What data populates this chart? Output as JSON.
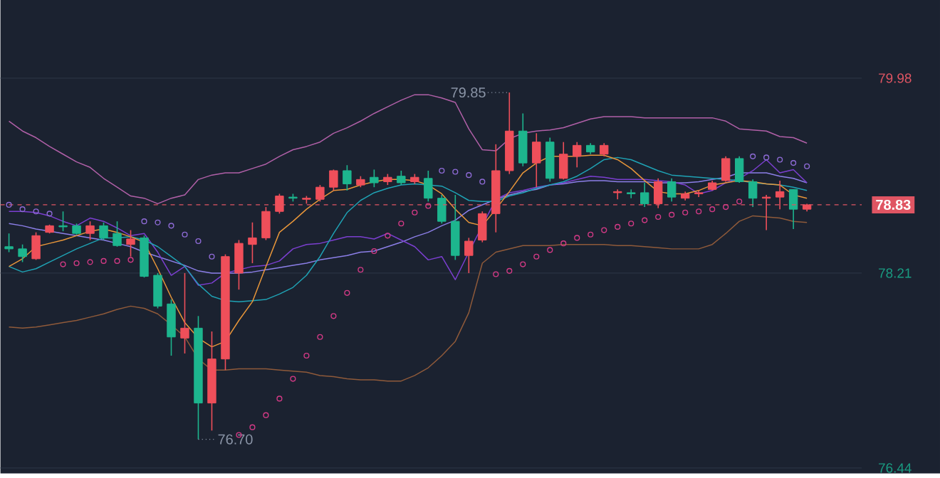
{
  "chart_data": {
    "type": "candlestick",
    "categories": [
      null,
      null,
      null,
      null,
      null,
      null,
      null,
      null,
      null,
      null,
      null,
      null,
      null,
      null,
      null,
      null,
      null,
      null,
      null,
      null,
      null,
      null,
      null,
      null,
      null,
      null,
      null,
      null,
      null,
      null,
      null,
      null,
      null,
      null,
      null,
      null,
      null,
      null,
      null,
      null,
      null,
      null,
      null,
      null,
      null,
      null,
      null,
      null,
      null,
      null,
      null,
      null,
      null,
      null,
      null,
      null,
      null,
      null,
      null,
      null
    ],
    "ohlc": [
      [
        78.45,
        78.57,
        78.4,
        78.43
      ],
      [
        78.43,
        78.47,
        78.31,
        78.36
      ],
      [
        78.34,
        78.58,
        78.33,
        78.55
      ],
      [
        78.58,
        78.65,
        78.57,
        78.64
      ],
      [
        78.64,
        78.77,
        78.59,
        78.63
      ],
      [
        78.64,
        78.66,
        78.56,
        78.57
      ],
      [
        78.57,
        78.68,
        78.51,
        78.64
      ],
      [
        78.64,
        78.67,
        78.51,
        78.53
      ],
      [
        78.57,
        78.68,
        78.45,
        78.46
      ],
      [
        78.47,
        78.6,
        78.36,
        78.52
      ],
      [
        78.53,
        78.55,
        78.17,
        78.18
      ],
      [
        78.19,
        78.21,
        77.89,
        77.91
      ],
      [
        77.93,
        77.97,
        77.46,
        77.63
      ],
      [
        77.62,
        78.21,
        77.48,
        77.71
      ],
      [
        77.71,
        77.82,
        76.7,
        77.03
      ],
      [
        77.03,
        77.68,
        76.78,
        77.43
      ],
      [
        77.43,
        78.38,
        77.33,
        78.36
      ],
      [
        78.21,
        78.51,
        78.06,
        78.48
      ],
      [
        78.47,
        78.67,
        78.3,
        78.53
      ],
      [
        78.53,
        78.81,
        78.51,
        78.77
      ],
      [
        78.77,
        78.93,
        78.75,
        78.91
      ],
      [
        78.9,
        78.93,
        78.86,
        78.89
      ],
      [
        78.88,
        78.91,
        78.84,
        78.89
      ],
      [
        78.88,
        79.01,
        78.86,
        78.99
      ],
      [
        78.99,
        79.15,
        78.96,
        79.14
      ],
      [
        79.14,
        79.19,
        78.96,
        79.02
      ],
      [
        79.01,
        79.09,
        78.99,
        79.06
      ],
      [
        79.08,
        79.15,
        78.99,
        79.03
      ],
      [
        79.04,
        79.11,
        79.01,
        79.08
      ],
      [
        79.09,
        79.14,
        79.01,
        79.03
      ],
      [
        79.04,
        79.11,
        79.02,
        79.08
      ],
      [
        79.07,
        79.14,
        78.86,
        78.89
      ],
      [
        78.89,
        78.92,
        78.66,
        78.68
      ],
      [
        78.68,
        78.92,
        78.33,
        78.37
      ],
      [
        78.37,
        78.53,
        78.21,
        78.5
      ],
      [
        78.51,
        78.77,
        78.49,
        78.75
      ],
      [
        78.75,
        79.38,
        78.58,
        79.14
      ],
      [
        79.14,
        79.85,
        79.11,
        79.5
      ],
      [
        79.5,
        79.66,
        79.18,
        79.21
      ],
      [
        79.21,
        79.48,
        78.99,
        79.4
      ],
      [
        79.4,
        79.44,
        79.04,
        79.07
      ],
      [
        79.07,
        79.4,
        79.06,
        79.29
      ],
      [
        79.27,
        79.4,
        79.17,
        79.37
      ],
      [
        79.37,
        79.39,
        79.29,
        79.31
      ],
      [
        79.29,
        79.39,
        79.27,
        79.37
      ],
      [
        78.94,
        78.97,
        78.88,
        78.95
      ],
      [
        78.94,
        78.97,
        78.89,
        78.93
      ],
      [
        78.94,
        79.03,
        78.81,
        78.84
      ],
      [
        78.84,
        79.07,
        78.8,
        79.04
      ],
      [
        79.04,
        79.07,
        78.86,
        78.9
      ],
      [
        78.89,
        78.95,
        78.87,
        78.93
      ],
      [
        78.93,
        78.96,
        78.9,
        78.94
      ],
      [
        78.97,
        79.05,
        78.96,
        79.03
      ],
      [
        79.05,
        79.27,
        79.04,
        79.25
      ],
      [
        79.25,
        79.27,
        79.03,
        79.04
      ],
      [
        79.04,
        79.06,
        78.81,
        78.89
      ],
      [
        78.89,
        78.92,
        78.6,
        78.9
      ],
      [
        78.9,
        79.05,
        78.79,
        78.95
      ],
      [
        78.97,
        78.97,
        78.61,
        78.79
      ],
      [
        78.79,
        78.84,
        78.77,
        78.83
      ]
    ],
    "colors": [
      "#1db58e",
      "#1db58e",
      "#ef4f5a",
      "#ef4f5a",
      "#1db58e",
      "#1db58e",
      "#ef4f5a",
      "#1db58e",
      "#1db58e",
      "#ef4f5a",
      "#1db58e",
      "#1db58e",
      "#1db58e",
      "#ef4f5a",
      "#1db58e",
      "#ef4f5a",
      "#ef4f5a",
      "#ef4f5a",
      "#ef4f5a",
      "#ef4f5a",
      "#ef4f5a",
      "#1db58e",
      "#ef4f5a",
      "#ef4f5a",
      "#ef4f5a",
      "#1db58e",
      "#ef4f5a",
      "#1db58e",
      "#ef4f5a",
      "#1db58e",
      "#ef4f5a",
      "#1db58e",
      "#1db58e",
      "#1db58e",
      "#ef4f5a",
      "#ef4f5a",
      "#ef4f5a",
      "#ef4f5a",
      "#1db58e",
      "#ef4f5a",
      "#1db58e",
      "#ef4f5a",
      "#ef4f5a",
      "#1db58e",
      "#ef4f5a",
      "#ef4f5a",
      "#1db58e",
      "#1db58e",
      "#ef4f5a",
      "#1db58e",
      "#ef4f5a",
      "#ef4f5a",
      "#ef4f5a",
      "#ef4f5a",
      "#1db58e",
      "#1db58e",
      "#ef4f5a",
      "#ef4f5a",
      "#1db58e",
      "#ef4f5a"
    ],
    "series": [
      {
        "type": "line",
        "color": "#b160a8",
        "values": [
          79.59,
          79.5,
          79.44,
          79.36,
          79.29,
          79.22,
          79.17,
          79.07,
          78.99,
          78.91,
          78.89,
          78.84,
          78.89,
          78.92,
          79.06,
          79.1,
          79.12,
          79.12,
          79.16,
          79.2,
          79.27,
          79.33,
          79.36,
          79.4,
          79.48,
          79.53,
          79.59,
          79.66,
          79.72,
          79.78,
          79.83,
          79.83,
          79.8,
          79.76,
          79.52,
          79.33,
          79.32,
          79.43,
          79.48,
          79.5,
          79.51,
          79.53,
          79.57,
          79.61,
          79.63,
          79.63,
          79.63,
          79.62,
          79.62,
          79.62,
          79.62,
          79.62,
          79.62,
          79.59,
          79.52,
          79.51,
          79.5,
          79.45,
          79.44,
          79.39
        ]
      },
      {
        "type": "line",
        "color": "#8f5a3a",
        "values": [
          77.72,
          77.71,
          77.72,
          77.74,
          77.76,
          77.78,
          77.81,
          77.84,
          77.88,
          77.91,
          77.89,
          77.84,
          77.74,
          77.63,
          77.43,
          77.33,
          77.33,
          77.34,
          77.34,
          77.34,
          77.33,
          77.32,
          77.31,
          77.28,
          77.27,
          77.25,
          77.24,
          77.24,
          77.23,
          77.23,
          77.28,
          77.35,
          77.46,
          77.59,
          77.85,
          78.3,
          78.4,
          78.43,
          78.46,
          78.46,
          78.46,
          78.47,
          78.47,
          78.47,
          78.47,
          78.46,
          78.46,
          78.45,
          78.44,
          78.43,
          78.43,
          78.43,
          78.47,
          78.57,
          78.68,
          78.73,
          78.72,
          78.71,
          78.68,
          78.67
        ]
      },
      {
        "type": "line",
        "color": "#8c7fe8",
        "values": [
          78.66,
          78.64,
          78.61,
          78.59,
          78.57,
          78.55,
          78.53,
          78.51,
          78.48,
          78.45,
          78.4,
          78.36,
          78.32,
          78.28,
          78.23,
          78.21,
          78.21,
          78.21,
          78.22,
          78.24,
          78.26,
          78.28,
          78.3,
          78.33,
          78.35,
          78.37,
          78.4,
          78.41,
          78.45,
          78.49,
          78.54,
          78.58,
          78.64,
          78.69,
          78.78,
          78.83,
          78.88,
          78.92,
          78.95,
          78.97,
          79.01,
          79.02,
          79.04,
          79.05,
          79.05,
          79.04,
          79.04,
          79.04,
          79.03,
          79.03,
          79.03,
          79.04,
          79.06,
          79.08,
          79.12,
          79.12,
          79.12,
          79.09,
          79.07,
          79.03
        ]
      },
      {
        "type": "line",
        "color": "#7b3fd0",
        "values": [
          78.77,
          78.77,
          78.76,
          78.73,
          78.68,
          78.64,
          78.71,
          78.68,
          78.62,
          78.55,
          78.57,
          78.4,
          78.19,
          78.27,
          78.1,
          78.12,
          78.21,
          78.24,
          78.27,
          78.28,
          78.32,
          78.43,
          78.47,
          78.48,
          78.51,
          78.54,
          78.54,
          78.52,
          78.57,
          78.51,
          78.45,
          78.33,
          78.36,
          78.15,
          78.4,
          null,
          78.88,
          78.94,
          78.96,
          78.99,
          79.01,
          79.03,
          79.06,
          79.09,
          79.08,
          79.06,
          79.06,
          79.06,
          79.05,
          79.04,
          79.01,
          78.93,
          78.96,
          79.03,
          79.07,
          79.14,
          79.24,
          79.12,
          79.15,
          79.03
        ]
      },
      {
        "type": "line",
        "color": "#1fa3b5",
        "values": [
          78.27,
          78.22,
          78.25,
          78.31,
          78.37,
          78.43,
          78.48,
          78.53,
          78.53,
          78.54,
          78.51,
          78.45,
          78.36,
          78.27,
          78.11,
          78.0,
          77.96,
          77.95,
          77.96,
          77.97,
          78.02,
          78.08,
          78.19,
          78.36,
          78.57,
          78.76,
          78.87,
          78.94,
          78.98,
          79.01,
          79.02,
          79.01,
          79.0,
          78.94,
          78.87,
          78.86,
          78.86,
          78.91,
          78.94,
          78.98,
          79.01,
          79.04,
          79.09,
          79.16,
          79.24,
          79.26,
          79.24,
          79.19,
          79.14,
          79.1,
          79.09,
          79.08,
          79.07,
          79.06,
          79.05,
          79.03,
          79.02,
          79.01,
          78.99,
          78.96
        ]
      },
      {
        "type": "line",
        "color": "#e8963a",
        "values": [
          78.27,
          78.34,
          78.45,
          78.48,
          78.51,
          78.55,
          78.59,
          78.61,
          78.58,
          78.54,
          78.49,
          78.25,
          77.99,
          77.76,
          77.62,
          77.54,
          77.59,
          77.78,
          77.95,
          78.27,
          78.58,
          78.68,
          78.79,
          78.88,
          78.96,
          78.97,
          79.01,
          79.04,
          79.06,
          79.06,
          79.05,
          79.01,
          78.93,
          78.79,
          78.67,
          78.64,
          78.79,
          78.95,
          79.12,
          79.21,
          79.27,
          79.27,
          79.27,
          79.28,
          79.28,
          79.24,
          79.16,
          79.05,
          78.95,
          78.93,
          78.93,
          78.96,
          79.01,
          79.03,
          79.05,
          79.04,
          79.02,
          79.01,
          78.92,
          78.89
        ]
      },
      {
        "type": "scatter",
        "marker": "circle",
        "color": "#8e6bd6",
        "values": [
          78.83,
          78.79,
          78.77,
          78.75,
          null,
          null,
          null,
          null,
          null,
          null,
          78.68,
          78.67,
          78.64,
          78.56,
          78.5,
          78.36,
          null,
          null,
          null,
          null,
          null,
          null,
          null,
          null,
          null,
          null,
          null,
          null,
          null,
          null,
          null,
          null,
          79.14,
          79.13,
          79.1,
          79.04,
          null,
          null,
          null,
          null,
          null,
          null,
          null,
          null,
          null,
          null,
          null,
          null,
          null,
          null,
          null,
          null,
          null,
          null,
          null,
          79.27,
          79.26,
          79.24,
          79.21,
          79.18
        ]
      },
      {
        "type": "scatter",
        "marker": "circle",
        "color": "#d43a86",
        "values": [
          null,
          null,
          null,
          null,
          78.29,
          78.3,
          78.31,
          78.32,
          78.32,
          78.33,
          null,
          null,
          null,
          null,
          null,
          null,
          null,
          76.74,
          76.81,
          76.92,
          77.07,
          77.25,
          77.46,
          77.63,
          77.82,
          78.03,
          78.24,
          78.41,
          78.55,
          78.66,
          78.76,
          78.82,
          null,
          null,
          null,
          null,
          78.2,
          78.23,
          78.29,
          78.36,
          78.42,
          78.48,
          78.53,
          78.56,
          78.6,
          78.63,
          78.66,
          78.69,
          78.72,
          78.74,
          78.76,
          78.77,
          78.79,
          78.81,
          78.86,
          null,
          null,
          null,
          null,
          null
        ]
      }
    ],
    "ylim": [
      76.39,
      80.69
    ],
    "yticks": [
      76.44,
      78.21,
      79.98
    ],
    "grid": "y",
    "tick_labels": "y",
    "ref_lines": [
      {
        "axis": "y",
        "value": 78.83,
        "label": "78.83",
        "color": "#e05563",
        "line_style": "dashed"
      }
    ],
    "annotations": [
      "79.85",
      "76.70"
    ]
  }
}
